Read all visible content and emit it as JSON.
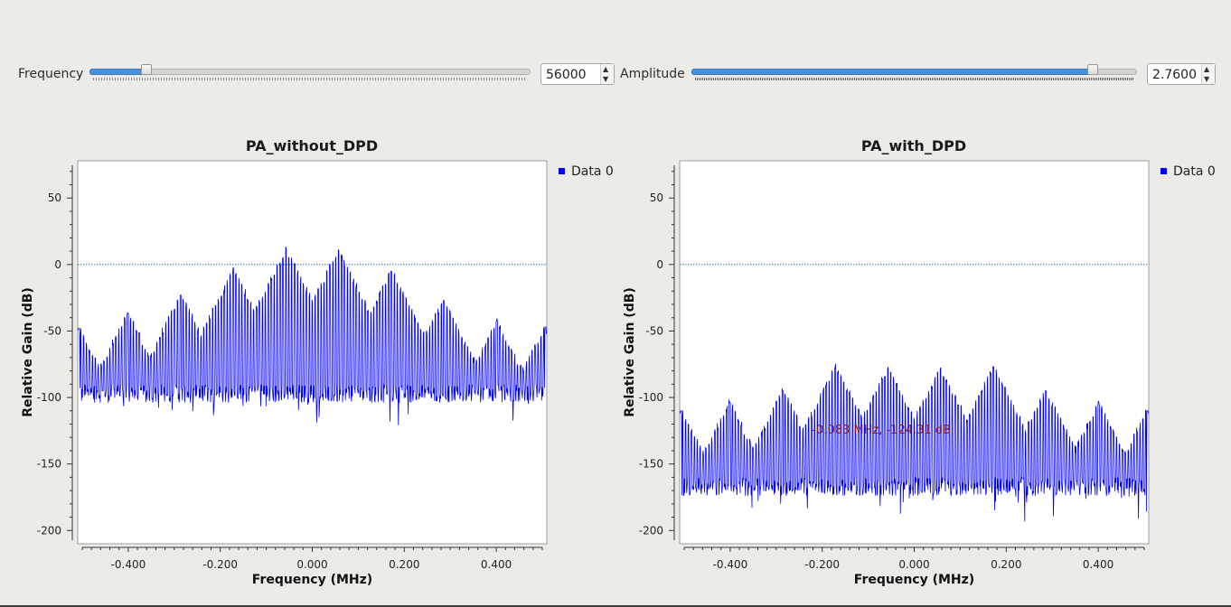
{
  "controls": {
    "frequency": {
      "label": "Frequency",
      "value": "56000",
      "slider_fraction": 0.12
    },
    "amplitude": {
      "label": "Amplitude",
      "value": "2.7600",
      "slider_fraction": 0.91
    }
  },
  "colors": {
    "series": "#0000ff",
    "reference_line": "#1f6fa8",
    "marker_text": "#8b1a1a",
    "plot_bg": "#ffffff",
    "window_bg": "#edebe8"
  },
  "chart_data": [
    {
      "type": "line",
      "title": "PA_without_DPD",
      "xlabel": "Frequency (MHz)",
      "ylabel": "Relative Gain (dB)",
      "xlim": [
        -0.5,
        0.5
      ],
      "ylim": [
        -210,
        78
      ],
      "xticks": [
        "-0.400",
        "-0.200",
        "0.000",
        "0.200",
        "0.400"
      ],
      "yticks": [
        "50",
        "0",
        "-50",
        "-100",
        "-150",
        "-200"
      ],
      "legend": "Data 0",
      "legend_position": "top-right",
      "reference_line_y": 0,
      "series": [
        {
          "name": "Data 0",
          "noise_floor": -97,
          "peaks": [
            {
              "x": -0.497,
              "y": -48
            },
            {
              "x": -0.393,
              "y": -37
            },
            {
              "x": -0.28,
              "y": -23
            },
            {
              "x": -0.168,
              "y": -4
            },
            {
              "x": -0.056,
              "y": 11
            },
            {
              "x": 0.056,
              "y": 10
            },
            {
              "x": 0.168,
              "y": -5
            },
            {
              "x": 0.28,
              "y": -27
            },
            {
              "x": 0.393,
              "y": -43
            },
            {
              "x": 0.497,
              "y": -47
            }
          ]
        }
      ]
    },
    {
      "type": "line",
      "title": "PA_with_DPD",
      "xlabel": "Frequency (MHz)",
      "ylabel": "Relative Gain (dB)",
      "xlim": [
        -0.5,
        0.5
      ],
      "ylim": [
        -210,
        78
      ],
      "xticks": [
        "-0.400",
        "-0.200",
        "0.000",
        "0.200",
        "0.400"
      ],
      "yticks": [
        "50",
        "0",
        "-50",
        "-100",
        "-150",
        "-200"
      ],
      "legend": "Data 0",
      "legend_position": "top-right",
      "reference_line_y": 0,
      "marker_label": "-0.083 MHz, -124.31 dB",
      "series": [
        {
          "name": "Data 0",
          "noise_floor": -167,
          "peaks": [
            {
              "x": -0.497,
              "y": -110
            },
            {
              "x": -0.393,
              "y": -104
            },
            {
              "x": -0.28,
              "y": -95
            },
            {
              "x": -0.168,
              "y": -77
            },
            {
              "x": -0.056,
              "y": -78
            },
            {
              "x": 0.056,
              "y": -78
            },
            {
              "x": 0.168,
              "y": -77
            },
            {
              "x": 0.28,
              "y": -95
            },
            {
              "x": 0.393,
              "y": -104
            },
            {
              "x": 0.497,
              "y": -110
            }
          ]
        }
      ]
    }
  ]
}
